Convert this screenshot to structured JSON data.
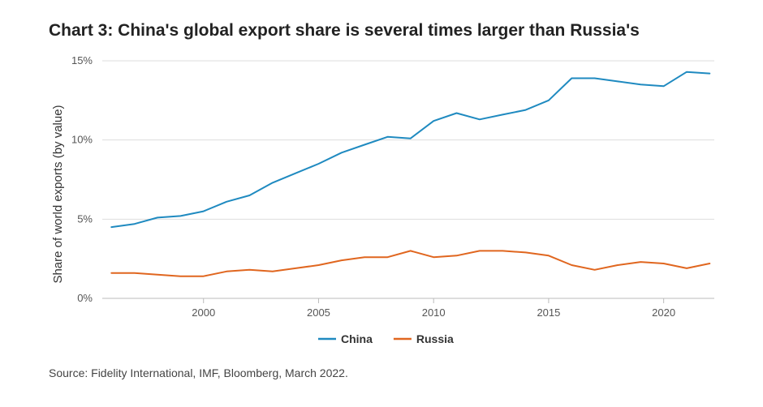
{
  "title": "Chart 3: China's global export share is several times larger than Russia's",
  "source": "Source: Fidelity International, IMF, Bloomberg, March 2022.",
  "chart_data": {
    "type": "line",
    "title": "Chart 3: China's global export share is several times larger than Russia's",
    "xlabel": "",
    "ylabel": "Share of world exports (by value)",
    "x": [
      1996,
      1997,
      1998,
      1999,
      2000,
      2001,
      2002,
      2003,
      2004,
      2005,
      2006,
      2007,
      2008,
      2009,
      2010,
      2011,
      2012,
      2013,
      2014,
      2015,
      2016,
      2017,
      2018,
      2019,
      2020,
      2021,
      2022
    ],
    "xlim": [
      1995.6,
      2022.2
    ],
    "ylim": [
      0,
      15
    ],
    "x_ticks": [
      2000,
      2005,
      2010,
      2015,
      2020
    ],
    "y_ticks": [
      0,
      5,
      10,
      15
    ],
    "y_tick_labels": [
      "0%",
      "5%",
      "10%",
      "15%"
    ],
    "grid": "horizontal",
    "legend_position": "bottom",
    "series": [
      {
        "name": "China",
        "color": "#1f8ac0",
        "values": [
          4.5,
          4.7,
          5.1,
          5.2,
          5.5,
          6.1,
          6.5,
          7.3,
          7.9,
          8.5,
          9.2,
          9.7,
          10.2,
          10.1,
          11.2,
          11.7,
          11.3,
          11.6,
          11.9,
          12.5,
          13.9,
          13.9,
          13.7,
          13.5,
          13.4,
          14.3,
          14.2
        ]
      },
      {
        "name": "Russia",
        "color": "#e0661f",
        "values": [
          1.6,
          1.6,
          1.5,
          1.4,
          1.4,
          1.7,
          1.8,
          1.7,
          1.9,
          2.1,
          2.4,
          2.6,
          2.6,
          3.0,
          2.6,
          2.7,
          3.0,
          3.0,
          2.9,
          2.7,
          2.1,
          1.8,
          2.1,
          2.3,
          2.2,
          1.9,
          2.2
        ]
      }
    ]
  }
}
